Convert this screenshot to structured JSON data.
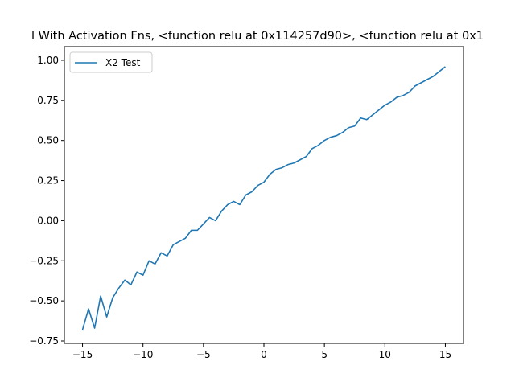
{
  "chart_data": {
    "type": "line",
    "title": "l With Activation Fns, <function relu at 0x114257d90>, <function relu at 0x1",
    "xlabel": "",
    "ylabel": "",
    "xlim": [
      -16.5,
      16.5
    ],
    "ylim": [
      -0.765,
      1.085
    ],
    "xticks": [
      -15,
      -10,
      -5,
      0,
      5,
      10,
      15
    ],
    "xtick_labels": [
      "−15",
      "−10",
      "−5",
      "0",
      "5",
      "10",
      "15"
    ],
    "yticks": [
      -0.75,
      -0.5,
      -0.25,
      0.0,
      0.25,
      0.5,
      0.75,
      1.0
    ],
    "ytick_labels": [
      "−0.75",
      "−0.50",
      "−0.25",
      "0.00",
      "0.25",
      "0.50",
      "0.75",
      "1.00"
    ],
    "grid": false,
    "legend_position": "upper-left",
    "series": [
      {
        "name": "X2 Test",
        "color": "#1f77b4",
        "x": [
          -15.0,
          -14.5,
          -14.0,
          -13.5,
          -13.0,
          -12.5,
          -12.0,
          -11.5,
          -11.0,
          -10.5,
          -10.0,
          -9.5,
          -9.0,
          -8.5,
          -8.0,
          -7.5,
          -7.0,
          -6.5,
          -6.0,
          -5.5,
          -5.0,
          -4.5,
          -4.0,
          -3.5,
          -3.0,
          -2.5,
          -2.0,
          -1.5,
          -1.0,
          -0.5,
          0.0,
          0.5,
          1.0,
          1.5,
          2.0,
          2.5,
          3.0,
          3.5,
          4.0,
          4.5,
          5.0,
          5.5,
          6.0,
          6.5,
          7.0,
          7.5,
          8.0,
          8.5,
          9.0,
          9.5,
          10.0,
          10.5,
          11.0,
          11.5,
          12.0,
          12.5,
          13.0,
          13.5,
          14.0,
          14.5,
          15.0
        ],
        "y": [
          -0.68,
          -0.55,
          -0.67,
          -0.47,
          -0.6,
          -0.48,
          -0.42,
          -0.37,
          -0.4,
          -0.32,
          -0.34,
          -0.25,
          -0.27,
          -0.2,
          -0.22,
          -0.15,
          -0.13,
          -0.11,
          -0.06,
          -0.06,
          -0.02,
          0.02,
          0.0,
          0.06,
          0.1,
          0.12,
          0.1,
          0.16,
          0.18,
          0.22,
          0.24,
          0.29,
          0.32,
          0.33,
          0.35,
          0.36,
          0.38,
          0.4,
          0.45,
          0.47,
          0.5,
          0.52,
          0.53,
          0.55,
          0.58,
          0.59,
          0.64,
          0.63,
          0.66,
          0.69,
          0.72,
          0.74,
          0.77,
          0.78,
          0.8,
          0.84,
          0.86,
          0.88,
          0.9,
          0.93,
          0.96
        ]
      }
    ]
  }
}
